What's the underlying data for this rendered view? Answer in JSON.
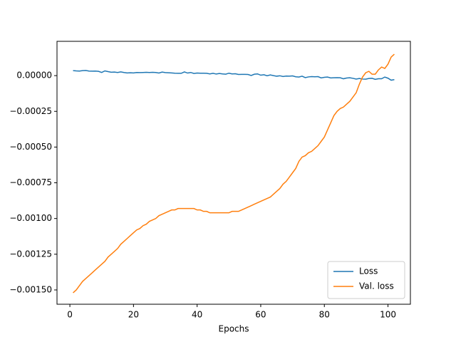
{
  "chart_data": {
    "type": "line",
    "x_label": "Epochs",
    "x": [
      1,
      2,
      3,
      4,
      5,
      6,
      7,
      8,
      9,
      10,
      11,
      12,
      13,
      14,
      15,
      16,
      17,
      18,
      19,
      20,
      21,
      22,
      23,
      24,
      25,
      26,
      27,
      28,
      29,
      30,
      31,
      32,
      33,
      34,
      35,
      36,
      37,
      38,
      39,
      40,
      41,
      42,
      43,
      44,
      45,
      46,
      47,
      48,
      49,
      50,
      51,
      52,
      53,
      54,
      55,
      56,
      57,
      58,
      59,
      60,
      61,
      62,
      63,
      64,
      65,
      66,
      67,
      68,
      69,
      70,
      71,
      72,
      73,
      74,
      75,
      76,
      77,
      78,
      79,
      80,
      81,
      82,
      83,
      84,
      85,
      86,
      87,
      88,
      89,
      90,
      91,
      92,
      93,
      94,
      95,
      96,
      97,
      98,
      99,
      100,
      101,
      102
    ],
    "series": [
      {
        "name": "Loss",
        "color": "#1f77b4",
        "values": [
          3.5e-05,
          3.3e-05,
          3.2e-05,
          3.5e-05,
          3.6e-05,
          3.2e-05,
          3.1e-05,
          3.2e-05,
          3e-05,
          2.2e-05,
          3.3e-05,
          2.8e-05,
          2.4e-05,
          2.5e-05,
          2.2e-05,
          2.6e-05,
          2.2e-05,
          1.9e-05,
          2e-05,
          1.9e-05,
          2.2e-05,
          2.1e-05,
          2.2e-05,
          2.3e-05,
          2.2e-05,
          2.3e-05,
          2.2e-05,
          1.8e-05,
          2.5e-05,
          2.1e-05,
          2e-05,
          1.9e-05,
          1.7e-05,
          1.6e-05,
          1.6e-05,
          2.6e-05,
          1.8e-05,
          2.2e-05,
          1.5e-05,
          1.8e-05,
          1.7e-05,
          1.7e-05,
          1.6e-05,
          1.2e-05,
          1.6e-05,
          1.1e-05,
          1.5e-05,
          1.2e-05,
          1e-05,
          1.7e-05,
          1.2e-05,
          1.3e-05,
          8e-06,
          9e-06,
          9e-06,
          8e-06,
          1e-06,
          1e-05,
          1.2e-05,
          3e-06,
          6e-06,
          -1e-06,
          5e-06,
          0,
          -4e-06,
          -1e-06,
          -6e-06,
          -3e-06,
          -4e-06,
          -2e-06,
          -8e-06,
          -1e-05,
          -4e-06,
          -1.4e-05,
          -9e-06,
          -7e-06,
          -8e-06,
          -7e-06,
          -1.6e-05,
          -1.2e-05,
          -1e-05,
          -1.6e-05,
          -1.5e-05,
          -1.4e-05,
          -1.5e-05,
          -2.2e-05,
          -1.7e-05,
          -1.5e-05,
          -1.9e-05,
          -2.4e-05,
          -2e-05,
          -2.4e-05,
          -2.5e-05,
          -2e-05,
          -1.9e-05,
          -2.6e-05,
          -2.2e-05,
          -2.2e-05,
          -1e-05,
          -1.8e-05,
          -3.2e-05,
          -2.8e-05
        ]
      },
      {
        "name": "Val. loss",
        "color": "#ff7f0e",
        "values": [
          -0.00152,
          -0.0015,
          -0.00147,
          -0.00144,
          -0.00142,
          -0.0014,
          -0.00138,
          -0.00136,
          -0.00134,
          -0.00132,
          -0.0013,
          -0.00127,
          -0.00125,
          -0.00123,
          -0.00121,
          -0.00118,
          -0.00116,
          -0.00114,
          -0.00112,
          -0.0011,
          -0.00108,
          -0.00107,
          -0.00105,
          -0.00104,
          -0.00102,
          -0.00101,
          -0.001,
          -0.00098,
          -0.00097,
          -0.00096,
          -0.00095,
          -0.00094,
          -0.00094,
          -0.00093,
          -0.00093,
          -0.00093,
          -0.00093,
          -0.00093,
          -0.00093,
          -0.00094,
          -0.00094,
          -0.00095,
          -0.00095,
          -0.00096,
          -0.00096,
          -0.00096,
          -0.00096,
          -0.00096,
          -0.00096,
          -0.00096,
          -0.00095,
          -0.00095,
          -0.00095,
          -0.00094,
          -0.00093,
          -0.00092,
          -0.00091,
          -0.0009,
          -0.00089,
          -0.00088,
          -0.00087,
          -0.00086,
          -0.00085,
          -0.00083,
          -0.00081,
          -0.00079,
          -0.00076,
          -0.00074,
          -0.00071,
          -0.00068,
          -0.00065,
          -0.0006,
          -0.00057,
          -0.00056,
          -0.00054,
          -0.00053,
          -0.00051,
          -0.00049,
          -0.00046,
          -0.00043,
          -0.00038,
          -0.00033,
          -0.00028,
          -0.00025,
          -0.00023,
          -0.00022,
          -0.0002,
          -0.00018,
          -0.00015,
          -0.00012,
          -6e-05,
          -1e-05,
          2e-05,
          3e-05,
          1e-05,
          1e-05,
          4e-05,
          6e-05,
          5e-05,
          8e-05,
          0.00013,
          0.00015
        ]
      }
    ],
    "xlim": [
      -4.05,
      107.05
    ],
    "xticks": [
      0,
      20,
      40,
      60,
      80,
      100
    ],
    "ylim": [
      -0.0016,
      0.00024
    ],
    "yticks": [
      {
        "value": 0,
        "label": "0.00000"
      },
      {
        "value": -0.00025,
        "label": "−0.00025"
      },
      {
        "value": -0.0005,
        "label": "−0.00050"
      },
      {
        "value": -0.00075,
        "label": "−0.00075"
      },
      {
        "value": -0.001,
        "label": "−0.00100"
      },
      {
        "value": -0.00125,
        "label": "−0.00125"
      },
      {
        "value": -0.0015,
        "label": "−0.00150"
      }
    ],
    "grid": false,
    "legend": "lower right"
  }
}
